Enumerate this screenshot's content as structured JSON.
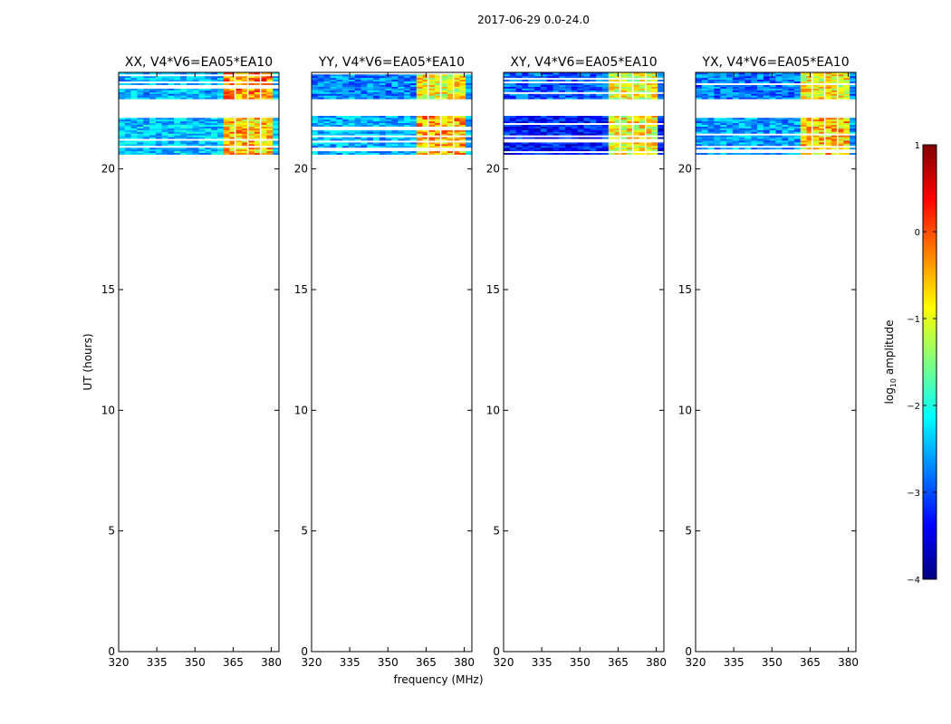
{
  "chart_data": {
    "type": "heatmap",
    "suptitle": "2017-06-29 0.0-24.0",
    "xlabel": "frequency (MHz)",
    "ylabel": "UT (hours)",
    "xlim": [
      320,
      383
    ],
    "ylim": [
      0,
      24
    ],
    "xticks": [
      "320",
      "335",
      "350",
      "365",
      "380"
    ],
    "yticks": [
      "0",
      "5",
      "10",
      "15",
      "20"
    ],
    "panels": [
      {
        "title": "XX, V4*V6=EA05*EA10",
        "low_band_level": -2.6,
        "high_band_level": -0.6,
        "time_blocks": [
          {
            "t_start": 22.9,
            "t_end": 24.0,
            "low_level": -2.5,
            "high_level": -0.3
          },
          {
            "t_start": 20.6,
            "t_end": 22.2,
            "low_level": -2.4,
            "high_level": -0.6
          }
        ]
      },
      {
        "title": "YY, V4*V6=EA05*EA10",
        "low_band_level": -2.8,
        "high_band_level": -0.7,
        "time_blocks": [
          {
            "t_start": 22.9,
            "t_end": 24.0,
            "low_level": -2.7,
            "high_level": -0.9
          },
          {
            "t_start": 20.6,
            "t_end": 22.2,
            "low_level": -2.5,
            "high_level": -0.5
          }
        ]
      },
      {
        "title": "XY, V4*V6=EA05*EA10",
        "low_band_level": -3.2,
        "high_band_level": -1.0,
        "time_blocks": [
          {
            "t_start": 22.9,
            "t_end": 24.0,
            "low_level": -2.9,
            "high_level": -1.0
          },
          {
            "t_start": 20.6,
            "t_end": 22.2,
            "low_level": -3.3,
            "high_level": -0.9
          }
        ]
      },
      {
        "title": "YX, V4*V6=EA05*EA10",
        "low_band_level": -2.9,
        "high_band_level": -0.8,
        "time_blocks": [
          {
            "t_start": 22.9,
            "t_end": 24.0,
            "low_level": -2.8,
            "high_level": -0.9
          },
          {
            "t_start": 20.6,
            "t_end": 22.2,
            "low_level": -2.6,
            "high_level": -0.6
          }
        ]
      }
    ],
    "colorbar": {
      "label": "log10 amplitude",
      "label_main": "log",
      "label_sub": "10",
      "label_rest": " amplitude",
      "range": [
        -4,
        1
      ],
      "ticks": [
        "1",
        "0",
        "−1",
        "−2",
        "−3",
        "−4"
      ],
      "colormap": "jet"
    }
  }
}
